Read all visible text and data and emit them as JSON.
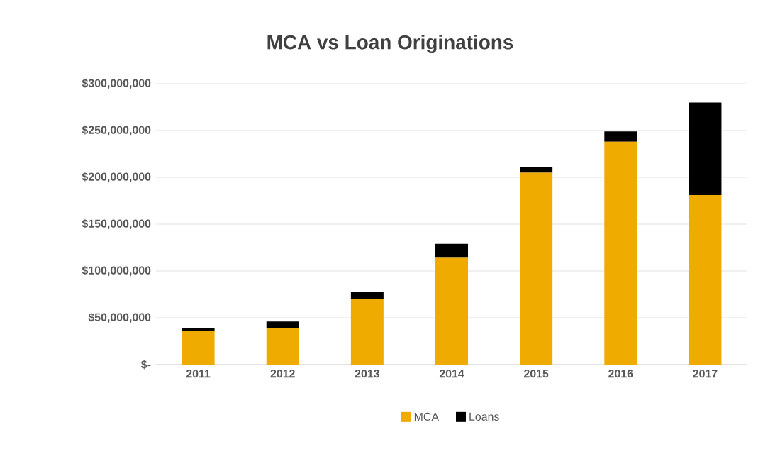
{
  "chart_data": {
    "type": "bar",
    "title": "MCA vs Loan Originations",
    "stacked": true,
    "categories": [
      "2011",
      "2012",
      "2013",
      "2014",
      "2015",
      "2016",
      "2017"
    ],
    "series": [
      {
        "name": "MCA",
        "color": "#f0ab00",
        "values": [
          36000000,
          39000000,
          70000000,
          114000000,
          205000000,
          238000000,
          181000000
        ]
      },
      {
        "name": "Loans",
        "color": "#000000",
        "values": [
          3000000,
          7000000,
          8000000,
          15000000,
          6000000,
          11000000,
          99000000
        ]
      }
    ],
    "ylim": [
      0,
      300000000
    ],
    "yticks": [
      {
        "value": 0,
        "label": "$-"
      },
      {
        "value": 50000000,
        "label": "$50,000,000"
      },
      {
        "value": 100000000,
        "label": "$100,000,000"
      },
      {
        "value": 150000000,
        "label": "$150,000,000"
      },
      {
        "value": 200000000,
        "label": "$200,000,000"
      },
      {
        "value": 250000000,
        "label": "$250,000,000"
      },
      {
        "value": 300000000,
        "label": "$300,000,000"
      }
    ],
    "grid": "y",
    "legend": "bottom"
  }
}
